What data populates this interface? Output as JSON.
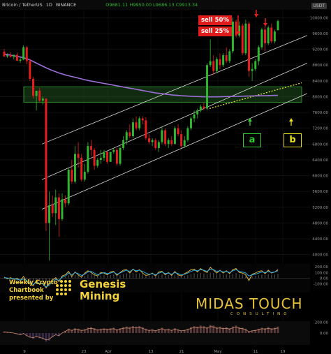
{
  "header": {
    "symbol": "Bitcoin / TetherUS",
    "interval": "1D",
    "exchange": "BINANCE",
    "ohlc": "O9681.11  H9950.00  L9686.13  C9913.34",
    "currency_badge": "USDT"
  },
  "annotations": {
    "sell_50": "sell 50%",
    "sell_25": "sell 25%",
    "signal_a": "a",
    "signal_b": "b",
    "weekly": [
      "Weekly Crypto",
      "Chartbook",
      "presented by"
    ],
    "genesis": [
      "Genesis",
      "Mining"
    ],
    "midas": "MIDAS TOUCH",
    "consulting": "CONSULTING"
  },
  "colors": {
    "up": "#2fb82f",
    "down": "#e81d1d",
    "ma": "#9c6fd8",
    "channel": "#d8d8d8",
    "zone": "#2e7a2e",
    "trend_dotted": "#e6dc3a",
    "signal_a": "#2fd02f",
    "signal_b": "#e8e01f",
    "osc_blue": "#29a8e0",
    "osc_yellow": "#e0b43a"
  },
  "chart_data": {
    "type": "candlestick",
    "title": "Bitcoin / TetherUS 1D",
    "ylim": [
      3800,
      10200
    ],
    "y_ticks": [
      10000,
      9600,
      9200,
      8800,
      8400,
      8000,
      7600,
      7200,
      6800,
      6400,
      6000,
      5600,
      5200,
      4800,
      4400,
      4000
    ],
    "y_tick_labels": [
      "10000.00",
      "9600.00",
      "9200.00",
      "8800.00",
      "8400.00",
      "8000.00",
      "7600.00",
      "7200.00",
      "6800.00",
      "6400.00",
      "6000.00",
      "5600.00",
      "5200.00",
      "4800.00",
      "4400.00",
      "4000.00"
    ],
    "x_tick_labels": [
      "9",
      "23",
      "Apr",
      "13",
      "21",
      "May",
      "11",
      "19"
    ],
    "osc_ticks": [
      "200.00",
      "100.00",
      "0.00",
      "-100.00"
    ],
    "osc2_ticks": [
      "200.00",
      "0.00"
    ],
    "candles": [
      {
        "o": 9140,
        "h": 9210,
        "l": 9000,
        "c": 9020
      },
      {
        "o": 9020,
        "h": 9100,
        "l": 8980,
        "c": 9050
      },
      {
        "o": 9050,
        "h": 9120,
        "l": 8990,
        "c": 9010
      },
      {
        "o": 9010,
        "h": 9060,
        "l": 8940,
        "c": 9060
      },
      {
        "o": 9060,
        "h": 9120,
        "l": 8900,
        "c": 8910
      },
      {
        "o": 8910,
        "h": 8990,
        "l": 8860,
        "c": 8940
      },
      {
        "o": 8940,
        "h": 9300,
        "l": 8920,
        "c": 9250
      },
      {
        "o": 9250,
        "h": 9280,
        "l": 8820,
        "c": 8900
      },
      {
        "o": 8900,
        "h": 8960,
        "l": 8400,
        "c": 8450
      },
      {
        "o": 8450,
        "h": 8500,
        "l": 7950,
        "c": 8020
      },
      {
        "o": 8020,
        "h": 8150,
        "l": 7650,
        "c": 8150
      },
      {
        "o": 8150,
        "h": 8220,
        "l": 7850,
        "c": 7900
      },
      {
        "o": 7900,
        "h": 8000,
        "l": 7800,
        "c": 7950
      },
      {
        "o": 7950,
        "h": 7960,
        "l": 4600,
        "c": 4800
      },
      {
        "o": 4800,
        "h": 5600,
        "l": 3850,
        "c": 5250
      },
      {
        "o": 5250,
        "h": 5500,
        "l": 4950,
        "c": 5050
      },
      {
        "o": 5050,
        "h": 5650,
        "l": 4750,
        "c": 5450
      },
      {
        "o": 5450,
        "h": 5550,
        "l": 4450,
        "c": 4900
      },
      {
        "o": 4900,
        "h": 5550,
        "l": 4850,
        "c": 5400
      },
      {
        "o": 5400,
        "h": 5500,
        "l": 5200,
        "c": 5300
      },
      {
        "o": 5300,
        "h": 6200,
        "l": 5250,
        "c": 6150
      },
      {
        "o": 6150,
        "h": 6400,
        "l": 5800,
        "c": 5850
      },
      {
        "o": 5850,
        "h": 6750,
        "l": 5800,
        "c": 6550
      },
      {
        "o": 6550,
        "h": 6850,
        "l": 6200,
        "c": 6450
      },
      {
        "o": 6450,
        "h": 6550,
        "l": 5850,
        "c": 5900
      },
      {
        "o": 5900,
        "h": 6300,
        "l": 5850,
        "c": 6100
      },
      {
        "o": 6100,
        "h": 6850,
        "l": 6050,
        "c": 6750
      },
      {
        "o": 6750,
        "h": 6900,
        "l": 6500,
        "c": 6650
      },
      {
        "o": 6650,
        "h": 6700,
        "l": 6150,
        "c": 6250
      },
      {
        "o": 6250,
        "h": 6450,
        "l": 6200,
        "c": 6400
      },
      {
        "o": 6400,
        "h": 6650,
        "l": 6300,
        "c": 6450
      },
      {
        "o": 6450,
        "h": 6650,
        "l": 6380,
        "c": 6600
      },
      {
        "o": 6600,
        "h": 6620,
        "l": 6300,
        "c": 6350
      },
      {
        "o": 6350,
        "h": 6600,
        "l": 6350,
        "c": 6600
      },
      {
        "o": 6600,
        "h": 6700,
        "l": 6550,
        "c": 6650
      },
      {
        "o": 6650,
        "h": 6700,
        "l": 6250,
        "c": 6300
      },
      {
        "o": 6300,
        "h": 6750,
        "l": 6250,
        "c": 6700
      },
      {
        "o": 6700,
        "h": 7000,
        "l": 6650,
        "c": 6900
      },
      {
        "o": 6900,
        "h": 7150,
        "l": 6780,
        "c": 7100
      },
      {
        "o": 7100,
        "h": 7300,
        "l": 6950,
        "c": 7000
      },
      {
        "o": 7000,
        "h": 7450,
        "l": 6950,
        "c": 7350
      },
      {
        "o": 7350,
        "h": 7500,
        "l": 7150,
        "c": 7200
      },
      {
        "o": 7200,
        "h": 7500,
        "l": 7150,
        "c": 7450
      },
      {
        "o": 7450,
        "h": 7500,
        "l": 7300,
        "c": 7400
      },
      {
        "o": 7400,
        "h": 7480,
        "l": 6900,
        "c": 6950
      },
      {
        "o": 6950,
        "h": 7050,
        "l": 6800,
        "c": 6850
      },
      {
        "o": 6850,
        "h": 6950,
        "l": 6750,
        "c": 6900
      },
      {
        "o": 6900,
        "h": 6950,
        "l": 6650,
        "c": 6700
      },
      {
        "o": 6700,
        "h": 6900,
        "l": 6600,
        "c": 6850
      },
      {
        "o": 6850,
        "h": 7250,
        "l": 6800,
        "c": 7150
      },
      {
        "o": 7150,
        "h": 7200,
        "l": 6750,
        "c": 6800
      },
      {
        "o": 6800,
        "h": 6950,
        "l": 6700,
        "c": 6900
      },
      {
        "o": 6900,
        "h": 7000,
        "l": 6750,
        "c": 6800
      },
      {
        "o": 6800,
        "h": 7250,
        "l": 6800,
        "c": 7200
      },
      {
        "o": 7200,
        "h": 7300,
        "l": 7000,
        "c": 7050
      },
      {
        "o": 7050,
        "h": 7150,
        "l": 6700,
        "c": 6750
      },
      {
        "o": 6750,
        "h": 7000,
        "l": 6700,
        "c": 6900
      },
      {
        "o": 6900,
        "h": 7250,
        "l": 6850,
        "c": 7200
      },
      {
        "o": 7200,
        "h": 7500,
        "l": 7150,
        "c": 7450
      },
      {
        "o": 7450,
        "h": 7650,
        "l": 7350,
        "c": 7550
      },
      {
        "o": 7550,
        "h": 7700,
        "l": 7450,
        "c": 7650
      },
      {
        "o": 7650,
        "h": 7800,
        "l": 7600,
        "c": 7750
      },
      {
        "o": 7750,
        "h": 7850,
        "l": 7650,
        "c": 7700
      },
      {
        "o": 7700,
        "h": 8850,
        "l": 7650,
        "c": 8800
      },
      {
        "o": 8800,
        "h": 9450,
        "l": 8750,
        "c": 8900
      },
      {
        "o": 8900,
        "h": 9050,
        "l": 8550,
        "c": 8650
      },
      {
        "o": 8650,
        "h": 9000,
        "l": 8600,
        "c": 8950
      },
      {
        "o": 8950,
        "h": 9100,
        "l": 8700,
        "c": 8800
      },
      {
        "o": 8800,
        "h": 9100,
        "l": 8750,
        "c": 9050
      },
      {
        "o": 9050,
        "h": 9250,
        "l": 8850,
        "c": 8900
      },
      {
        "o": 8900,
        "h": 9200,
        "l": 8850,
        "c": 9150
      },
      {
        "o": 9150,
        "h": 10000,
        "l": 9100,
        "c": 9900
      },
      {
        "o": 9900,
        "h": 9950,
        "l": 9500,
        "c": 9550
      },
      {
        "o": 9550,
        "h": 9900,
        "l": 9500,
        "c": 9800
      },
      {
        "o": 9800,
        "h": 9850,
        "l": 9050,
        "c": 9100
      },
      {
        "o": 9100,
        "h": 9950,
        "l": 9050,
        "c": 9850
      },
      {
        "o": 9850,
        "h": 9900,
        "l": 8500,
        "c": 8650
      },
      {
        "o": 8650,
        "h": 8850,
        "l": 8400,
        "c": 8700
      },
      {
        "o": 8700,
        "h": 8950,
        "l": 8650,
        "c": 8900
      },
      {
        "o": 8900,
        "h": 9300,
        "l": 8800,
        "c": 9250
      },
      {
        "o": 9250,
        "h": 9750,
        "l": 9200,
        "c": 9700
      },
      {
        "o": 9700,
        "h": 9800,
        "l": 9150,
        "c": 9350
      },
      {
        "o": 9350,
        "h": 9800,
        "l": 9300,
        "c": 9750
      },
      {
        "o": 9750,
        "h": 9850,
        "l": 9350,
        "c": 9400
      },
      {
        "o": 9400,
        "h": 9700,
        "l": 9350,
        "c": 9650
      },
      {
        "o": 9681,
        "h": 9950,
        "l": 9686,
        "c": 9913
      }
    ],
    "moving_average": [
      9080,
      9065,
      9050,
      9035,
      9020,
      9005,
      8985,
      8960,
      8930,
      8890,
      8850,
      8810,
      8770,
      8730,
      8695,
      8660,
      8630,
      8600,
      8575,
      8550,
      8530,
      8510,
      8490,
      8470,
      8450,
      8430,
      8410,
      8395,
      8380,
      8365,
      8350,
      8335,
      8320,
      8305,
      8290,
      8275,
      8260,
      8245,
      8230,
      8215,
      8200,
      8185,
      8170,
      8155,
      8140,
      8125,
      8110,
      8095,
      8085,
      8075,
      8065,
      8055,
      8045,
      8038,
      8032,
      8026,
      8020,
      8015,
      8010,
      8006,
      8003,
      8000,
      7998,
      7996,
      7995,
      7995,
      7996,
      7998,
      8000,
      8002,
      8004,
      8006,
      8008,
      8010,
      8012,
      8014,
      8016,
      8018,
      8020,
      8022,
      8024,
      8026,
      8028,
      8030,
      8032,
      8034
    ],
    "zone": {
      "low": 7860,
      "high": 8250
    },
    "oscillator_blue": [
      10,
      5,
      -5,
      -10,
      -20,
      -30,
      -15,
      -40,
      -80,
      -110,
      -70,
      -90,
      -100,
      -150,
      -120,
      -60,
      -20,
      -40,
      20,
      40,
      90,
      60,
      100,
      80,
      50,
      70,
      110,
      120,
      90,
      60,
      80,
      100,
      80,
      90,
      110,
      70,
      90,
      120,
      140,
      120,
      150,
      130,
      140,
      120,
      90,
      70,
      80,
      60,
      90,
      110,
      80,
      90,
      70,
      100,
      80,
      60,
      70,
      90,
      120,
      140,
      130,
      150,
      140,
      120,
      160,
      150,
      120,
      130,
      110,
      120,
      100,
      130,
      150,
      120,
      110,
      90,
      40,
      60,
      70,
      90,
      110,
      100,
      120,
      100,
      110,
      130
    ],
    "oscillator_yellow": [
      20,
      -10,
      10,
      -20,
      0,
      -40,
      30,
      -60,
      -100,
      -130,
      -40,
      -110,
      -80,
      -170,
      -90,
      -30,
      10,
      -60,
      40,
      60,
      120,
      30,
      110,
      60,
      20,
      90,
      130,
      100,
      60,
      40,
      100,
      90,
      60,
      110,
      120,
      50,
      100,
      140,
      150,
      90,
      160,
      110,
      150,
      90,
      50,
      60,
      90,
      40,
      110,
      120,
      60,
      100,
      50,
      120,
      60,
      40,
      80,
      110,
      150,
      160,
      110,
      170,
      130,
      100,
      190,
      140,
      90,
      140,
      90,
      130,
      80,
      150,
      170,
      100,
      90,
      60,
      -40,
      70,
      90,
      120,
      130,
      80,
      140,
      90,
      110,
      150
    ],
    "oscillator2": [
      30,
      20,
      10,
      0,
      -20,
      -40,
      -10,
      -60,
      -90,
      -110,
      -80,
      -100,
      -120,
      -160,
      -140,
      -80,
      -40,
      -60,
      0,
      40,
      80,
      60,
      90,
      80,
      60,
      70,
      100,
      110,
      90,
      70,
      80,
      90,
      80,
      90,
      100,
      70,
      90,
      110,
      120,
      110,
      130,
      120,
      130,
      110,
      80,
      60,
      70,
      50,
      80,
      100,
      70,
      80,
      60,
      90,
      70,
      50,
      60,
      80,
      110,
      130,
      120,
      140,
      130,
      110,
      150,
      140,
      110,
      120,
      100,
      110,
      90,
      120,
      140,
      110,
      100,
      80,
      30,
      50,
      60,
      80,
      100,
      90,
      110,
      90,
      100,
      120
    ]
  }
}
